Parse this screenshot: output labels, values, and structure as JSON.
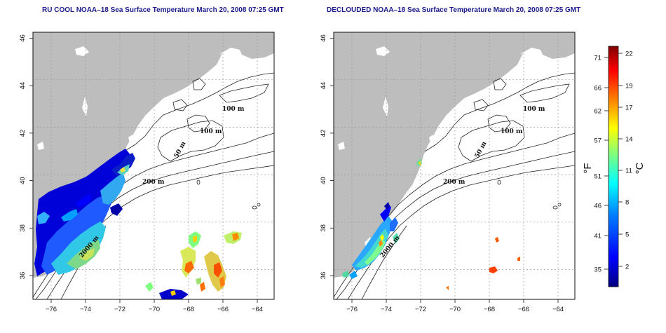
{
  "panels": [
    {
      "id": "left",
      "title": "RU COOL NOAA–18 Sea Surface Temperature March 20, 2008 07:25 GMT",
      "contour_labels": [
        "100 m",
        "100 m",
        "50 m",
        "200 m",
        "2000 m"
      ]
    },
    {
      "id": "right",
      "title": "DECLOUDED NOAA–18 Sea Surface Temperature March 20, 2008 07:25 GMT",
      "contour_labels": [
        "100 m",
        "100 m",
        "50 m",
        "200 m",
        "2000 m"
      ]
    }
  ],
  "axes": {
    "x_ticks": [
      "−76",
      "−74",
      "−72",
      "−70",
      "−68",
      "−66",
      "−64"
    ],
    "y_ticks": [
      "36",
      "38",
      "40",
      "42",
      "44",
      "46"
    ]
  },
  "colorbar": {
    "fahrenheit_label": "°F",
    "celsius_label": "°C",
    "fahrenheit_ticks": [
      "71",
      "66",
      "62",
      "57",
      "51",
      "46",
      "41",
      "35"
    ],
    "celsius_ticks": [
      "22",
      "19",
      "17",
      "14",
      "11",
      "8",
      "5",
      "2"
    ]
  },
  "colors": {
    "land": "#bdbdbd",
    "title": "#1a1a8c",
    "scale": [
      "#00007f",
      "#0000ff",
      "#007fff",
      "#00ffff",
      "#7fff7f",
      "#ffff00",
      "#ff7f00",
      "#ff0000",
      "#7f0000"
    ]
  }
}
